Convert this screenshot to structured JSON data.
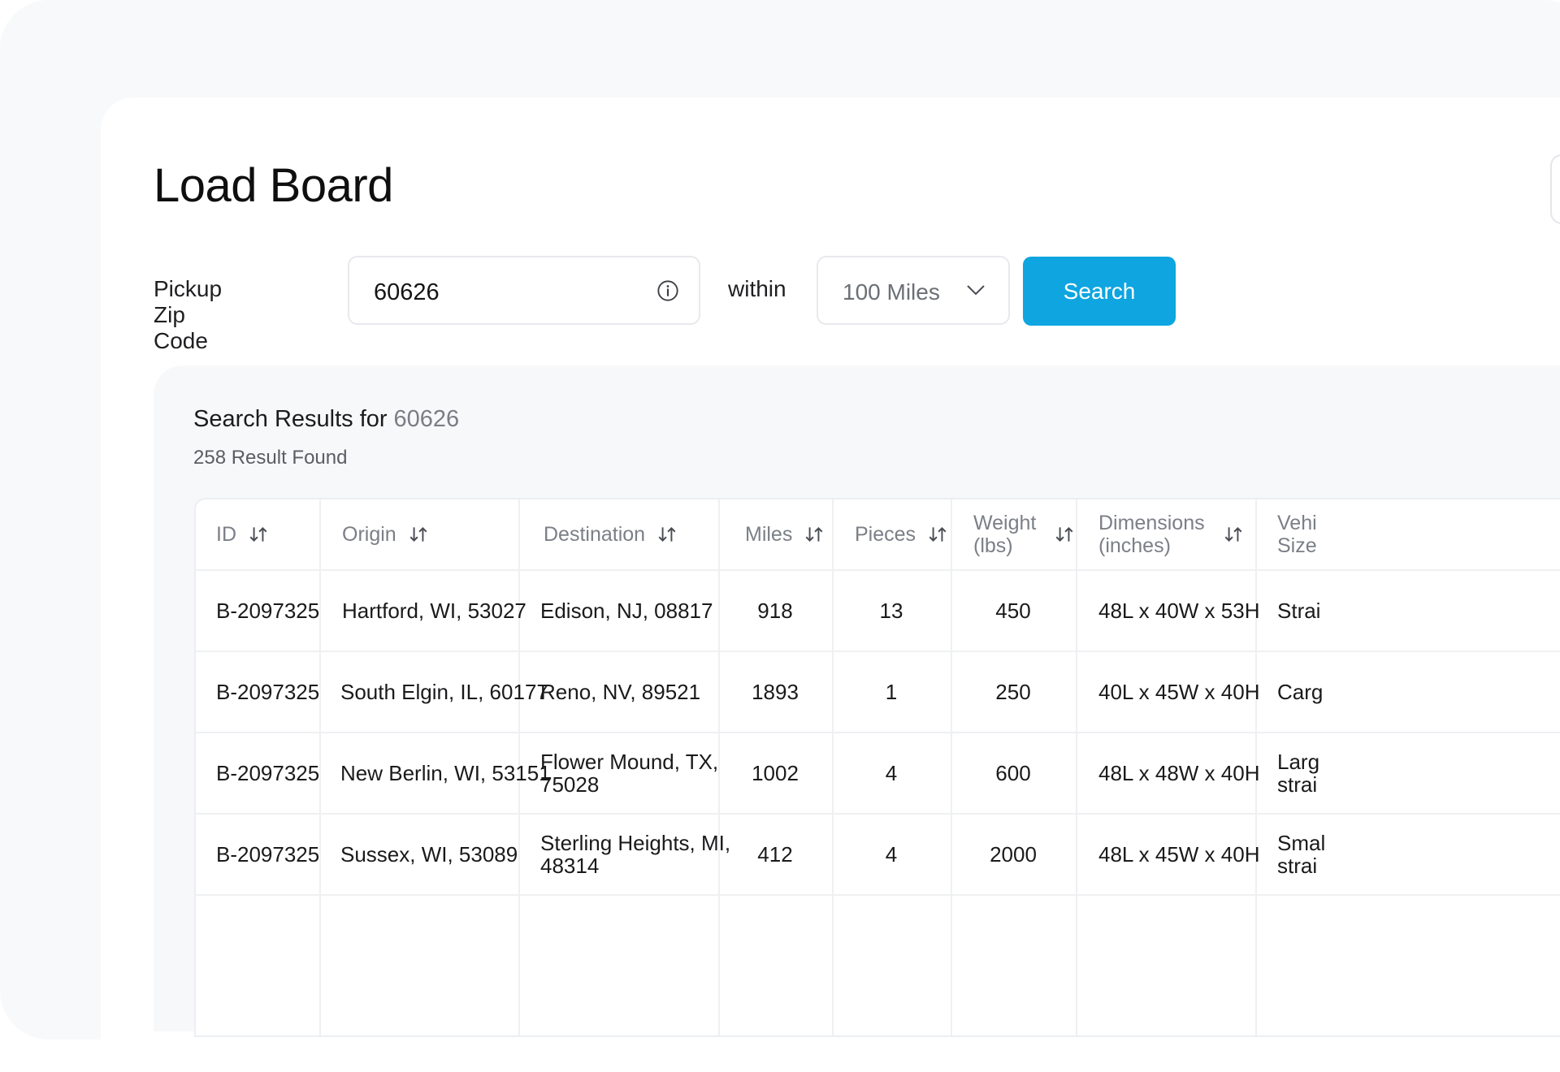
{
  "page": {
    "title": "Load Board"
  },
  "search": {
    "zip_label": "Pickup Zip Code",
    "zip_value": "60626",
    "within_label": "within",
    "radius_value": "100 Miles",
    "button_label": "Search"
  },
  "results": {
    "title": "Search Results for",
    "query": "60626",
    "count": "258 Result Found"
  },
  "table": {
    "headers": [
      "ID",
      "Origin",
      "Destination",
      "Miles",
      "Pieces",
      "Weight (lbs)",
      "Dimensions (inches)",
      "Vehicle Size"
    ],
    "header_lines": {
      "weight": [
        "Weight",
        "(lbs)"
      ],
      "dimensions": [
        "Dimensions",
        "(inches)"
      ],
      "vehicle": [
        "Vehi",
        "Size"
      ]
    },
    "rows": [
      {
        "id": "B-2097325",
        "origin": "Hartford, WI, 53027",
        "destination": [
          "Edison, NJ, 08817"
        ],
        "miles": "918",
        "pieces": "13",
        "weight": "450",
        "dimensions": "48L x 40W x 53H",
        "vehicle": [
          "Strai"
        ]
      },
      {
        "id": "B-2097325",
        "origin": "South Elgin, IL, 60177",
        "destination": [
          "Reno, NV, 89521"
        ],
        "miles": "1893",
        "pieces": "1",
        "weight": "250",
        "dimensions": "40L x 45W x 40H",
        "vehicle": [
          "Carg"
        ]
      },
      {
        "id": "B-2097325",
        "origin": "New Berlin, WI, 53151",
        "destination": [
          "Flower Mound, TX,",
          "75028"
        ],
        "miles": "1002",
        "pieces": "4",
        "weight": "600",
        "dimensions": "48L x 48W x 40H",
        "vehicle": [
          "Larg",
          "strai"
        ]
      },
      {
        "id": "B-2097325",
        "origin": "Sussex, WI, 53089",
        "destination": [
          "Sterling Heights, MI,",
          "48314"
        ],
        "miles": "412",
        "pieces": "4",
        "weight": "2000",
        "dimensions": "48L x 45W x 40H",
        "vehicle": [
          "Smal",
          "strai"
        ]
      }
    ]
  },
  "icons": {
    "info": "info-circle-icon",
    "chevron": "chevron-down-icon",
    "sort": "sort-arrows-icon"
  },
  "colors": {
    "accent": "#0ea5e0",
    "frame_bg": "#f8f9fa",
    "results_bg": "#f7f8fa"
  }
}
